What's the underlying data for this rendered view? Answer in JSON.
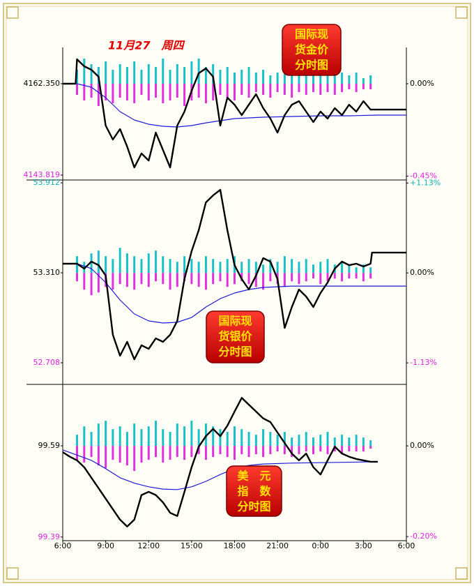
{
  "chart_data": [
    {
      "type": "line",
      "title": "11月27　周四",
      "label_lines": [
        "国际现",
        "货金价",
        "分时图"
      ],
      "xlim": [
        0,
        24
      ],
      "ylim": [
        4142.83,
        4170.84
      ],
      "y2lim": [
        -0.469,
        0.204
      ],
      "yticks": [
        4143.819,
        {
          "value": 4162.35,
          "label": "4162.350"
        }
      ],
      "ytick_colors": [
        "#e020e0",
        "#000000"
      ],
      "y2ticks": [
        {
          "value": -0.45,
          "label": "-0.45%"
        },
        {
          "value": 0,
          "label": "0.00%"
        }
      ],
      "y2tick_colors": [
        "#e020e0",
        "#000000"
      ],
      "series": [
        {
          "color": "#000000",
          "x": [
            0,
            0.9,
            1,
            1.5,
            2,
            2.5,
            3,
            3.5,
            4,
            4.5,
            5,
            5.5,
            6,
            6.5,
            7,
            7.5,
            8,
            8.5,
            9,
            9.5,
            10,
            10.5,
            11,
            11.5,
            12,
            12.5,
            13,
            13.5,
            14,
            14.5,
            15,
            15.5,
            16,
            16.5,
            17,
            17.5,
            18,
            18.5,
            19,
            19.5,
            20,
            20.5,
            21,
            21.5,
            24
          ],
          "values": [
            4162.35,
            4162.35,
            4167.3,
            4165.89,
            4165.18,
            4163.77,
            4153.86,
            4151.03,
            4153.15,
            4149.61,
            4145.37,
            4148.2,
            4146.78,
            4152.44,
            4148.91,
            4145.37,
            4153.86,
            4156.69,
            4160.93,
            4164.47,
            4165.46,
            4163.77,
            4153.86,
            4159.52,
            4158.1,
            4155.98,
            4158.1,
            4160.23,
            4157.4,
            4155.28,
            4152.44,
            4155.98,
            4158.1,
            4158.81,
            4156.69,
            4154.57,
            4156.69,
            4155.28,
            4157.4,
            4155.98,
            4158.1,
            4156.69,
            4158.81,
            4157.11,
            4157.11
          ]
        },
        {
          "color": "#1a1adc",
          "x": [
            1,
            2,
            3,
            4,
            5,
            6,
            7,
            8,
            9,
            10,
            11,
            12,
            13,
            14,
            16,
            18,
            20,
            22,
            24
          ],
          "values": [
            4162.35,
            4161.64,
            4159.52,
            4156.69,
            4154.99,
            4154.14,
            4153.72,
            4153.58,
            4153.86,
            4154.42,
            4154.85,
            4155.28,
            4155.42,
            4155.56,
            4155.7,
            4155.84,
            4155.84,
            4155.98,
            4155.98
          ]
        }
      ],
      "volume": {
        "up_color": "#18c0c8",
        "down_color": "#e030e0",
        "x": [
          1,
          1.5,
          2,
          2.5,
          3,
          3.5,
          4,
          4.5,
          5,
          5.5,
          6,
          6.5,
          7,
          7.5,
          8,
          8.5,
          9,
          9.5,
          10,
          10.5,
          11,
          11.5,
          12,
          12.5,
          13,
          13.5,
          14,
          14.5,
          15,
          15.5,
          16,
          16.5,
          17,
          17.5,
          18,
          18.5,
          19,
          19.5,
          20,
          20.5,
          21,
          21.5
        ],
        "up": [
          5,
          9,
          7,
          6,
          8,
          5,
          7,
          6,
          8,
          5,
          7,
          6,
          9,
          5,
          7,
          6,
          8,
          9,
          6,
          7,
          5,
          6,
          4,
          5,
          6,
          4,
          5,
          3,
          4,
          5,
          4,
          3,
          5,
          4,
          3,
          4,
          3,
          4,
          3,
          4,
          2,
          3
        ],
        "down": [
          4,
          6,
          5,
          8,
          6,
          7,
          5,
          6,
          7,
          4,
          6,
          5,
          7,
          6,
          5,
          8,
          6,
          5,
          7,
          6,
          4,
          5,
          6,
          4,
          5,
          3,
          4,
          5,
          3,
          4,
          5,
          3,
          4,
          3,
          4,
          3,
          4,
          3,
          2,
          3,
          2,
          2
        ]
      }
    },
    {
      "type": "line",
      "label_lines": [
        "国际现",
        "货银价",
        "分时图"
      ],
      "xlim": [
        0,
        24
      ],
      "ylim": [
        52.568,
        53.931
      ],
      "y2lim": [
        -1.392,
        1.168
      ],
      "yticks": [
        52.708,
        {
          "value": 53.31,
          "label": "53.310"
        },
        53.912
      ],
      "ytick_colors": [
        "#e020e0",
        "#000000",
        "#10b0b8"
      ],
      "y2ticks": [
        {
          "value": -1.13,
          "label": "-1.13%"
        },
        {
          "value": 0,
          "label": "0.00%"
        },
        {
          "value": 1.13,
          "label": "+1.13%"
        }
      ],
      "y2tick_colors": [
        "#e020e0",
        "#000000",
        "#10b0b8"
      ],
      "series": [
        {
          "color": "#000000",
          "x": [
            0,
            1,
            1.5,
            2,
            2.5,
            3,
            3.5,
            4,
            4.5,
            5,
            5.5,
            6,
            6.5,
            7,
            7.5,
            8,
            8.5,
            9,
            9.5,
            10,
            10.5,
            11,
            11.5,
            12,
            12.5,
            13,
            13.5,
            14,
            14.5,
            15,
            15.5,
            16,
            16.5,
            17,
            17.5,
            18,
            18.5,
            19,
            19.5,
            20,
            20.5,
            21,
            21.5,
            21.6,
            24
          ],
          "values": [
            53.371,
            53.371,
            53.338,
            53.385,
            53.361,
            53.291,
            52.895,
            52.755,
            52.848,
            52.731,
            52.825,
            52.801,
            52.871,
            52.848,
            52.895,
            52.988,
            53.268,
            53.455,
            53.595,
            53.781,
            53.828,
            53.865,
            53.595,
            53.361,
            53.268,
            53.198,
            53.291,
            53.408,
            53.385,
            53.268,
            52.941,
            53.081,
            53.198,
            53.151,
            53.081,
            53.175,
            53.245,
            53.338,
            53.385,
            53.361,
            53.371,
            53.352,
            53.371,
            53.445,
            53.445
          ]
        },
        {
          "color": "#1a1adc",
          "x": [
            1,
            2,
            3,
            4,
            5,
            6,
            7,
            8,
            9,
            10,
            11,
            12,
            13,
            14,
            16,
            24
          ],
          "values": [
            53.371,
            53.338,
            53.245,
            53.128,
            53.035,
            52.988,
            52.974,
            52.979,
            53.011,
            53.081,
            53.137,
            53.175,
            53.198,
            53.212,
            53.221,
            53.221
          ]
        }
      ],
      "volume": {
        "up_color": "#18c0c8",
        "down_color": "#e030e0",
        "x": [
          1,
          1.5,
          2,
          2.5,
          3,
          3.5,
          4,
          4.5,
          5,
          5.5,
          6,
          6.5,
          7,
          7.5,
          8,
          8.5,
          9,
          9.5,
          10,
          10.5,
          11,
          11.5,
          12,
          12.5,
          13,
          13.5,
          14,
          14.5,
          15,
          15.5,
          16,
          16.5,
          17,
          17.5,
          18,
          18.5,
          19,
          19.5,
          20,
          20.5,
          21,
          21.5
        ],
        "up": [
          6,
          4,
          7,
          8,
          6,
          5,
          9,
          7,
          6,
          5,
          7,
          8,
          6,
          5,
          4,
          6,
          5,
          4,
          6,
          5,
          4,
          5,
          6,
          4,
          5,
          4,
          3,
          5,
          4,
          6,
          5,
          4,
          5,
          3,
          4,
          5,
          3,
          4,
          3,
          2,
          3,
          2
        ],
        "down": [
          3,
          6,
          8,
          7,
          5,
          6,
          4,
          5,
          6,
          4,
          5,
          3,
          4,
          6,
          5,
          3,
          4,
          5,
          6,
          4,
          3,
          5,
          4,
          3,
          4,
          5,
          6,
          3,
          4,
          5,
          3,
          4,
          3,
          2,
          4,
          3,
          2,
          3,
          2,
          2,
          3,
          2
        ]
      }
    },
    {
      "type": "line",
      "label_lines": [
        "美　元",
        "指　数",
        "分时图"
      ],
      "xlim": [
        0,
        24
      ],
      "ylim": [
        99.382,
        99.723
      ],
      "y2lim": [
        -0.209,
        0.134
      ],
      "yticks": [
        99.39,
        99.59
      ],
      "ytick_colors": [
        "#e020e0",
        "#000000"
      ],
      "y2ticks": [
        {
          "value": -0.2,
          "label": "-0.20%"
        },
        {
          "value": 0,
          "label": "0.00%"
        }
      ],
      "y2tick_colors": [
        "#e020e0",
        "#000000"
      ],
      "xticks": [
        {
          "value": 0,
          "label": "6:00"
        },
        {
          "value": 3,
          "label": "9:00"
        },
        {
          "value": 6,
          "label": "12:00"
        },
        {
          "value": 9,
          "label": "15:00"
        },
        {
          "value": 12,
          "label": "18:00"
        },
        {
          "value": 15,
          "label": "21:00"
        },
        {
          "value": 18,
          "label": "0:00"
        },
        {
          "value": 21,
          "label": "3:00"
        },
        {
          "value": 24,
          "label": "6:00"
        }
      ],
      "series": [
        {
          "color": "#000000",
          "x": [
            0,
            0.5,
            1,
            1.5,
            2,
            2.5,
            3,
            3.5,
            4,
            4.5,
            5,
            5.5,
            6,
            6.5,
            7,
            7.5,
            8,
            8.5,
            9,
            9.5,
            10,
            10.5,
            11,
            11.5,
            12,
            12.5,
            13,
            13.5,
            14,
            14.5,
            15,
            15.5,
            16,
            16.5,
            17,
            17.5,
            18,
            18.5,
            19,
            19.5,
            20,
            20.5,
            21,
            21.5,
            22
          ],
          "values": [
            99.576,
            99.566,
            99.558,
            99.543,
            99.52,
            99.497,
            99.474,
            99.451,
            99.428,
            99.413,
            99.428,
            99.482,
            99.489,
            99.482,
            99.466,
            99.443,
            99.436,
            99.489,
            99.543,
            99.588,
            99.611,
            99.627,
            99.611,
            99.634,
            99.665,
            99.695,
            99.68,
            99.665,
            99.65,
            99.642,
            99.619,
            99.596,
            99.573,
            99.558,
            99.573,
            99.543,
            99.527,
            99.558,
            99.588,
            99.573,
            99.566,
            99.561,
            99.558,
            99.555,
            99.555
          ]
        },
        {
          "color": "#1a1adc",
          "x": [
            0,
            2,
            3,
            4,
            5,
            6,
            7,
            8,
            9,
            10,
            11,
            12,
            13,
            14,
            16,
            18,
            22
          ],
          "values": [
            99.581,
            99.558,
            99.54,
            99.52,
            99.508,
            99.5,
            99.495,
            99.494,
            99.5,
            99.512,
            99.527,
            99.54,
            99.547,
            99.55,
            99.552,
            99.553,
            99.555
          ]
        }
      ],
      "volume": {
        "up_color": "#18c0c8",
        "down_color": "#e030e0",
        "x": [
          1,
          1.5,
          2,
          2.5,
          3,
          3.5,
          4,
          4.5,
          5,
          5.5,
          6,
          6.5,
          7,
          7.5,
          8,
          8.5,
          9,
          9.5,
          10,
          10.5,
          11,
          11.5,
          12,
          12.5,
          13,
          13.5,
          14,
          14.5,
          15,
          15.5,
          16,
          16.5,
          17,
          17.5,
          18,
          18.5,
          19,
          19.5,
          20,
          20.5,
          21,
          21.5
        ],
        "up": [
          4,
          7,
          5,
          8,
          9,
          6,
          7,
          5,
          8,
          6,
          7,
          9,
          6,
          5,
          8,
          7,
          9,
          6,
          8,
          7,
          6,
          5,
          7,
          6,
          5,
          4,
          6,
          5,
          4,
          5,
          3,
          4,
          5,
          3,
          4,
          5,
          3,
          4,
          3,
          4,
          3,
          2
        ],
        "down": [
          5,
          6,
          4,
          7,
          8,
          5,
          6,
          7,
          9,
          6,
          5,
          4,
          6,
          5,
          4,
          5,
          4,
          3,
          5,
          4,
          3,
          4,
          5,
          3,
          4,
          3,
          4,
          3,
          2,
          3,
          4,
          3,
          2,
          3,
          2,
          3,
          2,
          3,
          2,
          2,
          2,
          1
        ]
      }
    }
  ]
}
